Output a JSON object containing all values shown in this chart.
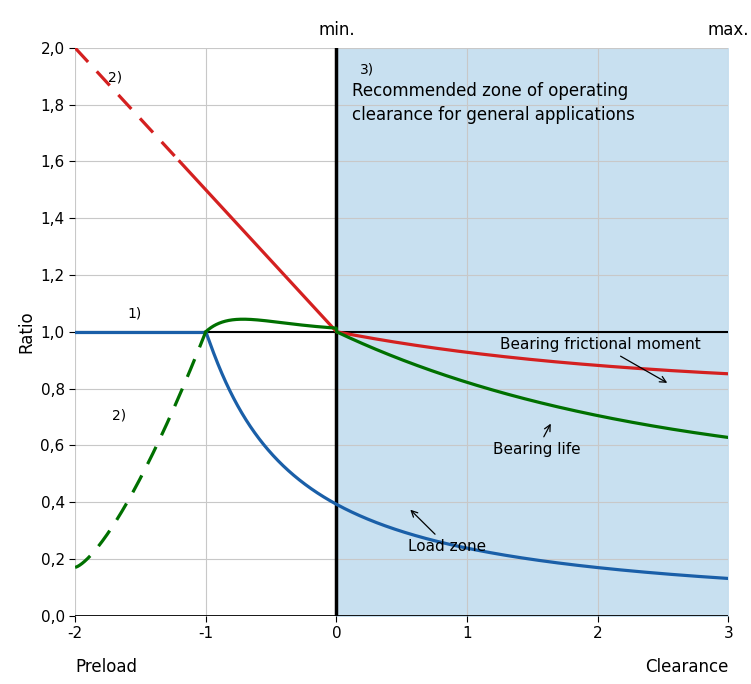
{
  "xlim": [
    -2,
    3
  ],
  "ylim": [
    0,
    2.0
  ],
  "xticks": [
    -2,
    -1,
    0,
    1,
    2,
    3
  ],
  "yticks": [
    0,
    0.2,
    0.4,
    0.6,
    0.8,
    1.0,
    1.2,
    1.4,
    1.6,
    1.8,
    2.0
  ],
  "xlabel_left": "Preload",
  "xlabel_right": "Clearance",
  "ylabel": "Ratio",
  "zone_xmin": 0,
  "zone_xmax": 3,
  "recommended_zone_color": "#c8e0f0",
  "min_label": "min.",
  "max_label": "max.",
  "min_x": 0,
  "max_x": 3,
  "annotation_text": "Recommended zone of operating\nclearance for general applications",
  "annotation_label": "3)",
  "label1_text": "1)",
  "label2_text": "2)",
  "red_color": "#d42020",
  "green_color": "#007000",
  "blue_color": "#1a5fa8",
  "line_width": 2.3,
  "grid_color": "#c8c8c8",
  "label_fontsize": 12,
  "tick_fontsize": 11,
  "annotation_fontsize": 12
}
